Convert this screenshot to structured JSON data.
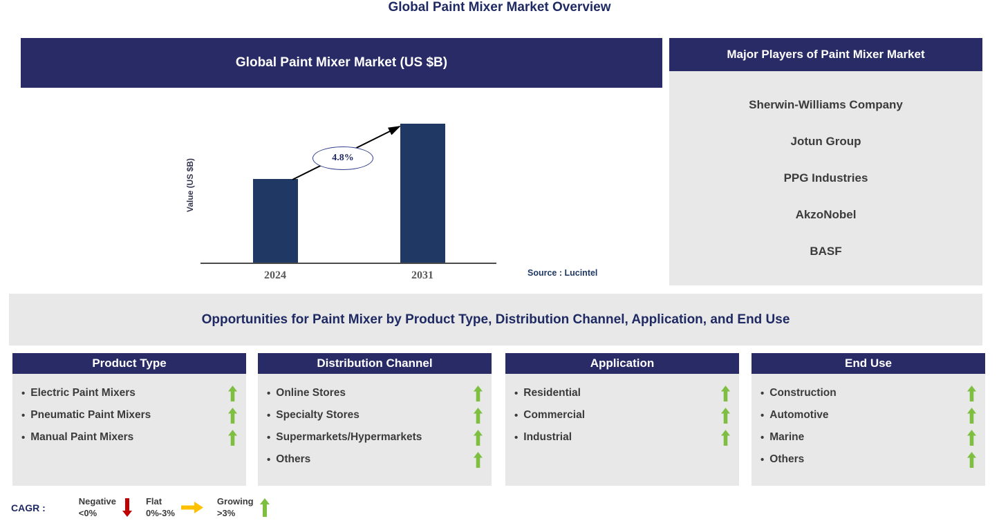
{
  "page_title": "Global Paint Mixer Market Overview",
  "colors": {
    "header_navy": "#282B66",
    "bar_navy": "#1F3864",
    "panel_gray": "#E8E8E8",
    "growing_green": "#7EBE41",
    "negative_red": "#C00000",
    "flat_yellow": "#FFC000",
    "title_navy": "#1F2A63"
  },
  "market_chart": {
    "header": "Global Paint Mixer Market (US $B)",
    "source": "Source : Lucintel"
  },
  "chart_data": {
    "type": "bar",
    "title": "Global Paint Mixer Market (US $B)",
    "categories": [
      "2024",
      "2031"
    ],
    "values": [
      0.6,
      1.0
    ],
    "value_scale_shown": false,
    "ylabel": "Value (US $B)",
    "xlabel": "",
    "annotation": "4.8%",
    "grid": false,
    "legend": false
  },
  "major_players": {
    "header": "Major Players of Paint Mixer Market",
    "items": [
      "Sherwin-Williams  Company",
      "Jotun Group",
      "PPG Industries",
      "AkzoNobel",
      "BASF"
    ]
  },
  "opportunities_title": "Opportunities for Paint Mixer by Product Type, Distribution Channel, Application, and End Use",
  "columns": [
    {
      "header": "Product Type",
      "items": [
        {
          "label": "Electric Paint Mixers",
          "trend": "growing"
        },
        {
          "label": "Pneumatic Paint Mixers",
          "trend": "growing"
        },
        {
          "label": "Manual Paint Mixers",
          "trend": "growing"
        }
      ]
    },
    {
      "header": "Distribution Channel",
      "items": [
        {
          "label": "Online Stores",
          "trend": "growing"
        },
        {
          "label": "Specialty Stores",
          "trend": "growing"
        },
        {
          "label": "Supermarkets/Hypermarkets",
          "trend": "growing"
        },
        {
          "label": "Others",
          "trend": "growing"
        }
      ]
    },
    {
      "header": "Application",
      "items": [
        {
          "label": "Residential",
          "trend": "growing"
        },
        {
          "label": "Commercial",
          "trend": "growing"
        },
        {
          "label": "Industrial",
          "trend": "growing"
        }
      ]
    },
    {
      "header": "End Use",
      "items": [
        {
          "label": "Construction",
          "trend": "growing"
        },
        {
          "label": "Automotive",
          "trend": "growing"
        },
        {
          "label": "Marine",
          "trend": "growing"
        },
        {
          "label": "Others",
          "trend": "growing"
        }
      ]
    }
  ],
  "legend": {
    "label": "CAGR :",
    "entries": [
      {
        "name": "Negative",
        "range": "<0%",
        "trend": "negative"
      },
      {
        "name": "Flat",
        "range": "0%-3%",
        "trend": "flat"
      },
      {
        "name": "Growing",
        "range": ">3%",
        "trend": "growing"
      }
    ]
  }
}
